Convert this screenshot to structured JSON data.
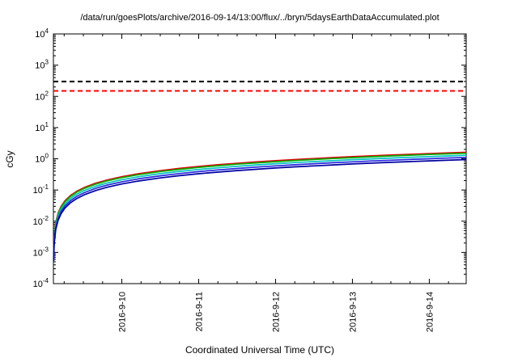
{
  "chart_data": {
    "type": "line",
    "title": "/data/run/goesPlots/archive/2016-09-14/13:00/flux/../bryn/5daysEarthDataAccumulated.plot",
    "xlabel": "Coordinated Universal Time (UTC)",
    "ylabel": "cGy",
    "y_scale": "log",
    "ylim": [
      0.0001,
      10000
    ],
    "xlim": [
      0,
      5.37
    ],
    "x_unit": "days from plot start (2016-09-09)",
    "grid": false,
    "legend": "none",
    "y_tick_exponents": [
      4,
      3,
      2,
      1,
      0,
      -1,
      -2,
      -3,
      -4
    ],
    "x_ticks": [
      {
        "t": 0.89,
        "label": "2016-9-10"
      },
      {
        "t": 1.89,
        "label": "2016-9-11"
      },
      {
        "t": 2.89,
        "label": "2016-9-12"
      },
      {
        "t": 3.89,
        "label": "2016-9-13"
      },
      {
        "t": 4.89,
        "label": "2016-9-14"
      }
    ],
    "reference_lines": [
      {
        "name": "upper-limit-black-dashed",
        "y": 300,
        "color": "#000000",
        "style": "dashed"
      },
      {
        "name": "lower-limit-red-dashed",
        "y": 150,
        "color": "#ff0000",
        "style": "dashed"
      }
    ],
    "x_samples": [
      0.003,
      0.01,
      0.03,
      0.06,
      0.1,
      0.15,
      0.22,
      0.3,
      0.4,
      0.55,
      0.7,
      0.89,
      1.1,
      1.39,
      1.64,
      1.89,
      2.14,
      2.39,
      2.64,
      2.89,
      3.14,
      3.39,
      3.64,
      3.89,
      4.14,
      4.39,
      4.64,
      4.89,
      5.1,
      5.37
    ],
    "series": [
      {
        "name": "series-red",
        "color": "#e00000",
        "values": [
          0.0009,
          0.003,
          0.009,
          0.018,
          0.03,
          0.045,
          0.066,
          0.09,
          0.12,
          0.165,
          0.21,
          0.267,
          0.33,
          0.417,
          0.492,
          0.567,
          0.642,
          0.717,
          0.792,
          0.867,
          0.942,
          1.017,
          1.092,
          1.167,
          1.242,
          1.317,
          1.392,
          1.467,
          1.53,
          1.611
        ]
      },
      {
        "name": "series-green",
        "color": "#00b000",
        "values": [
          0.00084,
          0.0028,
          0.0084,
          0.0168,
          0.028,
          0.042,
          0.0616,
          0.084,
          0.112,
          0.154,
          0.196,
          0.249,
          0.308,
          0.389,
          0.459,
          0.529,
          0.599,
          0.669,
          0.739,
          0.809,
          0.879,
          0.949,
          1.019,
          1.089,
          1.159,
          1.229,
          1.299,
          1.369,
          1.428,
          1.504
        ]
      },
      {
        "name": "series-cyan",
        "color": "#00c0c0",
        "values": [
          0.00072,
          0.0024,
          0.0072,
          0.0144,
          0.024,
          0.036,
          0.0528,
          0.072,
          0.096,
          0.132,
          0.168,
          0.214,
          0.264,
          0.334,
          0.394,
          0.454,
          0.514,
          0.574,
          0.634,
          0.694,
          0.754,
          0.814,
          0.874,
          0.934,
          0.994,
          1.054,
          1.114,
          1.174,
          1.224,
          1.289
        ]
      },
      {
        "name": "series-blue",
        "color": "#2828e0",
        "values": [
          0.00062,
          0.0021,
          0.0062,
          0.0123,
          0.0205,
          0.0308,
          0.0451,
          0.0615,
          0.082,
          0.113,
          0.144,
          0.182,
          0.226,
          0.285,
          0.336,
          0.387,
          0.439,
          0.49,
          0.541,
          0.592,
          0.644,
          0.695,
          0.746,
          0.797,
          0.849,
          0.9,
          0.951,
          1.002,
          1.046,
          1.101
        ]
      },
      {
        "name": "series-darkblue",
        "color": "#0000a0",
        "values": [
          0.00053,
          0.0018,
          0.0053,
          0.0105,
          0.0175,
          0.0263,
          0.0385,
          0.0525,
          0.07,
          0.0963,
          0.1225,
          0.156,
          0.193,
          0.243,
          0.287,
          0.331,
          0.375,
          0.418,
          0.462,
          0.506,
          0.55,
          0.593,
          0.637,
          0.681,
          0.725,
          0.768,
          0.812,
          0.856,
          0.893,
          0.94
        ]
      }
    ]
  }
}
